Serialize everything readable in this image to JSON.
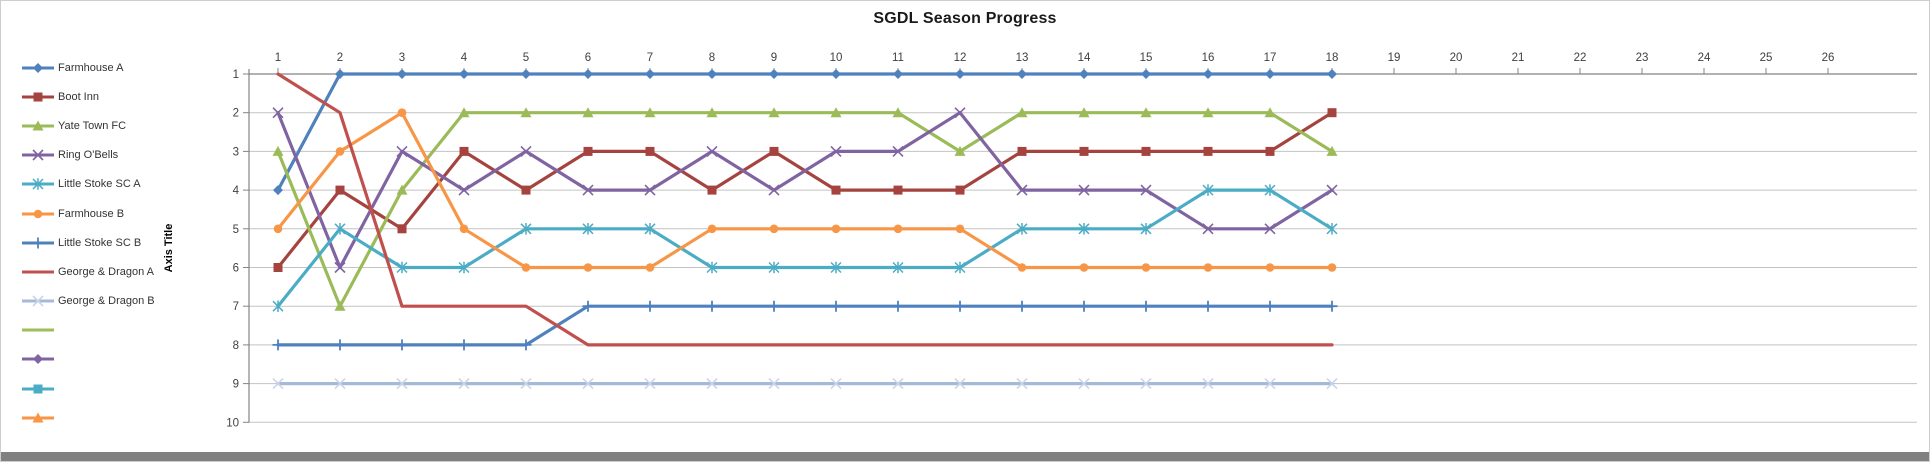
{
  "chrome": {
    "border_color": "#cdcdcd",
    "bottom_bar_color": "#808080",
    "gridline_color": "#c3c3c3",
    "axis_color": "#848484",
    "label_color": "#404040",
    "title_color": "#1a1a1a"
  },
  "chart_data": {
    "type": "line",
    "title": "SGDL Season Progress",
    "xlabel": "",
    "ylabel": "Axis Title",
    "x": [
      1,
      2,
      3,
      4,
      5,
      6,
      7,
      8,
      9,
      10,
      11,
      12,
      13,
      14,
      15,
      16,
      17,
      18
    ],
    "x_axis_ticks": [
      1,
      2,
      3,
      4,
      5,
      6,
      7,
      8,
      9,
      10,
      11,
      12,
      13,
      14,
      15,
      16,
      17,
      18,
      19,
      20,
      21,
      22,
      23,
      24,
      25,
      26
    ],
    "y_ticks": [
      1,
      2,
      3,
      4,
      5,
      6,
      7,
      8,
      9,
      10
    ],
    "ylim": [
      1,
      10
    ],
    "y_reversed": true,
    "grid": "horizontal",
    "legend_position": "left",
    "series": [
      {
        "name": "Farmhouse A",
        "color": "#4F81BD",
        "marker": "diamond",
        "values": [
          4,
          1,
          1,
          1,
          1,
          1,
          1,
          1,
          1,
          1,
          1,
          1,
          1,
          1,
          1,
          1,
          1,
          1
        ]
      },
      {
        "name": "Boot Inn",
        "color": "#A5433F",
        "marker": "square",
        "values": [
          6,
          4,
          5,
          3,
          4,
          3,
          3,
          4,
          3,
          4,
          4,
          4,
          3,
          3,
          3,
          3,
          3,
          2
        ]
      },
      {
        "name": "Yate Town FC",
        "color": "#9BBB59",
        "marker": "triangle",
        "values": [
          3,
          7,
          4,
          2,
          2,
          2,
          2,
          2,
          2,
          2,
          2,
          3,
          2,
          2,
          2,
          2,
          2,
          3
        ]
      },
      {
        "name": "Ring O'Bells",
        "color": "#8064A2",
        "marker": "x",
        "values": [
          2,
          6,
          3,
          4,
          3,
          4,
          4,
          3,
          4,
          3,
          3,
          2,
          4,
          4,
          4,
          5,
          5,
          4
        ]
      },
      {
        "name": "Little Stoke SC A",
        "color": "#4BACC6",
        "marker": "star",
        "values": [
          7,
          5,
          6,
          6,
          5,
          5,
          5,
          6,
          6,
          6,
          6,
          6,
          5,
          5,
          5,
          4,
          4,
          5
        ]
      },
      {
        "name": "Farmhouse B",
        "color": "#F79646",
        "marker": "circle",
        "values": [
          5,
          3,
          2,
          5,
          6,
          6,
          6,
          5,
          5,
          5,
          5,
          5,
          6,
          6,
          6,
          6,
          6,
          6
        ]
      },
      {
        "name": "Little Stoke SC B",
        "color": "#4F81BD",
        "marker": "plus",
        "values": [
          8,
          8,
          8,
          8,
          8,
          7,
          7,
          7,
          7,
          7,
          7,
          7,
          7,
          7,
          7,
          7,
          7,
          7
        ]
      },
      {
        "name": "George & Dragon A",
        "color": "#C0504D",
        "marker": "none",
        "values": [
          1,
          2,
          7,
          7,
          7,
          8,
          8,
          8,
          8,
          8,
          8,
          8,
          8,
          8,
          8,
          8,
          8,
          8
        ]
      },
      {
        "name": "George & Dragon B",
        "color": "#A6BAD8",
        "marker": "x",
        "marker_color": "#C9D5E7",
        "values": [
          9,
          9,
          9,
          9,
          9,
          9,
          9,
          9,
          9,
          9,
          9,
          9,
          9,
          9,
          9,
          9,
          9,
          9
        ]
      },
      {
        "name": "",
        "color": "#9FBE5A",
        "marker": "none",
        "values": []
      },
      {
        "name": "",
        "color": "#8064A2",
        "marker": "diamond",
        "values": []
      },
      {
        "name": "",
        "color": "#4BACC6",
        "marker": "square",
        "values": []
      },
      {
        "name": "",
        "color": "#F79646",
        "marker": "triangle",
        "values": []
      }
    ]
  }
}
